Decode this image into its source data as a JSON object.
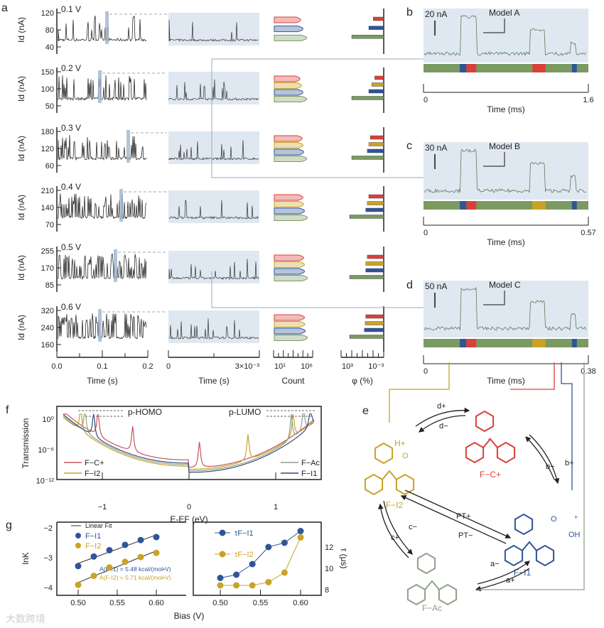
{
  "panel_labels": {
    "a": "a",
    "b": "b",
    "c": "c",
    "d": "d",
    "e": "e",
    "f": "f",
    "g": "g"
  },
  "colors": {
    "red": "#d9403a",
    "yellow": "#c9a227",
    "blue": "#2f5597",
    "green": "#7a9a62",
    "gray": "#8fa08a",
    "trace_bg": "#dfe8f1"
  },
  "chart_data": [
    {
      "id": "a",
      "type": "line",
      "ylabel": "Id (nA)",
      "xlabel_full": "Time (s)",
      "xlabel_zoom": "Time (s)",
      "xlabel_count": "Count",
      "xlabel_phi": "φ (%)",
      "x_ticks_full": [
        "0.0",
        "0.1",
        "0.2"
      ],
      "x_ticks_zoom": [
        "0",
        "3×10⁻³"
      ],
      "x_ticks_count": [
        "10¹",
        "10⁶"
      ],
      "x_ticks_phi": [
        "10³",
        "10⁻³"
      ],
      "rows": [
        {
          "bias": "0.1 V",
          "yticks": [
            "120",
            "80",
            "40"
          ],
          "ylim": [
            40,
            120
          ],
          "baseline": 60,
          "states": [
            "red",
            "blue",
            "green"
          ],
          "phi": [
            0.35,
            0.5,
            0.75
          ]
        },
        {
          "bias": "0.2 V",
          "yticks": [
            "150",
            "100",
            "50"
          ],
          "ylim": [
            50,
            150
          ],
          "baseline": 75,
          "states": [
            "red",
            "yellow",
            "blue",
            "green"
          ],
          "phi": [
            0.3,
            0.4,
            0.5,
            0.75
          ]
        },
        {
          "bias": "0.3 V",
          "yticks": [
            "180",
            "120",
            "60"
          ],
          "ylim": [
            60,
            180
          ],
          "baseline": 95,
          "states": [
            "red",
            "yellow",
            "blue",
            "green"
          ],
          "phi": [
            0.45,
            0.5,
            0.55,
            0.75
          ]
        },
        {
          "bias": "0.4 V",
          "yticks": [
            "210",
            "140",
            "70"
          ],
          "ylim": [
            70,
            210
          ],
          "baseline": 105,
          "states": [
            "red",
            "yellow",
            "blue",
            "green"
          ],
          "phi": [
            0.5,
            0.55,
            0.6,
            0.8
          ]
        },
        {
          "bias": "0.5 V",
          "yticks": [
            "255",
            "170",
            "85"
          ],
          "ylim": [
            85,
            255
          ],
          "baseline": 150,
          "states": [
            "red",
            "yellow",
            "blue",
            "green"
          ],
          "phi": [
            0.55,
            0.6,
            0.6,
            0.8
          ]
        },
        {
          "bias": "0.6 V",
          "yticks": [
            "320",
            "240",
            "160"
          ],
          "ylim": [
            160,
            320
          ],
          "baseline": 200,
          "states": [
            "red",
            "yellow",
            "blue",
            "green"
          ],
          "phi": [
            0.6,
            0.62,
            0.65,
            0.8
          ]
        }
      ]
    },
    {
      "id": "b",
      "type": "line",
      "scale": "20 nA",
      "model": "Model A",
      "xticks": [
        "0",
        "1.6"
      ],
      "xlabel": "Time (ms)"
    },
    {
      "id": "c",
      "type": "line",
      "scale": "30 nA",
      "model": "Model B",
      "xticks": [
        "0",
        "0.57"
      ],
      "xlabel": "Time (ms)"
    },
    {
      "id": "d",
      "type": "line",
      "scale": "50 nA",
      "model": "Model C",
      "xticks": [
        "0",
        "0.38"
      ],
      "xlabel": "Time (ms)"
    },
    {
      "id": "f",
      "type": "line",
      "xlabel": "E-EF (eV)",
      "ylabel": "Transmission",
      "xlim": [
        -1.5,
        1.5
      ],
      "ylim_log10": [
        -12,
        2
      ],
      "xticks": [
        "−1",
        "0",
        "1"
      ],
      "yticks": [
        "10⁰",
        "10⁻⁶",
        "10⁻¹²"
      ],
      "annotations": [
        "p-HOMO",
        "p-LUMO"
      ],
      "series": [
        {
          "name": "F−C+",
          "color": "#c9545a",
          "peaks": [
            -1.05,
            -0.65,
            0.12
          ]
        },
        {
          "name": "F−I2",
          "color": "#c9a227",
          "peaks": [
            -1.25,
            0.68,
            1.2
          ]
        },
        {
          "name": "F−Ac",
          "color": "#8fa08a",
          "peaks": [
            -1.2,
            1.18,
            1.32
          ]
        },
        {
          "name": "F−I1",
          "color": "#2f4f7a",
          "peaks": [
            -1.1,
            1.4
          ]
        }
      ]
    },
    {
      "id": "g",
      "type": "scatter",
      "xlabel": "Bias (V)",
      "ylabel_left": "lnK",
      "ylabel_right": "τ (μs)",
      "x": [
        0.5,
        0.52,
        0.54,
        0.56,
        0.58,
        0.6
      ],
      "xticks": [
        "0.50",
        "0.55",
        "0.60"
      ],
      "yticks_left": [
        "−2",
        "−3",
        "−4"
      ],
      "yticks_right": [
        "12",
        "10",
        "8"
      ],
      "legend_fit": "Linear Fit",
      "series_left": [
        {
          "name": "F−I1",
          "color": "#2f5597",
          "values": [
            -3.28,
            -2.96,
            -2.75,
            -2.57,
            -2.41,
            -2.31
          ]
        },
        {
          "name": "F−I2",
          "color": "#c9a227",
          "values": [
            -3.91,
            -3.61,
            -3.33,
            -3.14,
            -2.98,
            -2.84
          ]
        }
      ],
      "series_right": [
        {
          "name": "τF−I1",
          "color": "#2f5597",
          "values": [
            9.1,
            9.4,
            10.4,
            12.0,
            12.4,
            13.5
          ]
        },
        {
          "name": "τF−I2",
          "color": "#c9a227",
          "values": [
            8.4,
            8.4,
            8.4,
            8.7,
            9.6,
            12.9
          ]
        }
      ],
      "annotations": [
        "A(F-I1) = 5.48 kcal/(mol•V)",
        "A(F-I2) = 5.71 kcal/(mol•V)"
      ]
    }
  ],
  "scheme": {
    "species": [
      "F−C+",
      "F−I2",
      "F−I1",
      "F−Ac"
    ],
    "rates": [
      "d+",
      "d−",
      "b+",
      "b−",
      "PT+",
      "PT−",
      "c−",
      "c+",
      "a−",
      "a+"
    ],
    "atoms": {
      "h_plus": "H+",
      "o": "O",
      "oh": "OH",
      "plus": "+"
    }
  },
  "watermark": "大数跨境"
}
